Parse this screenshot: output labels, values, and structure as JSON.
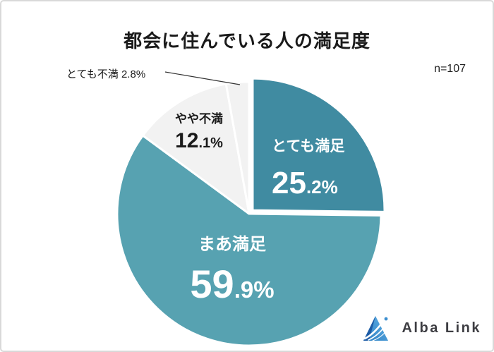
{
  "title": "都会に住んでいる人の満足度",
  "sample_size": "n=107",
  "chart_data": {
    "type": "pie",
    "title": "都会に住んでいる人の満足度",
    "sample_size_label": "n=107",
    "categories": [
      "とても満足",
      "まあ満足",
      "やや不満",
      "とても不満"
    ],
    "values": [
      25.2,
      59.9,
      12.1,
      2.8
    ],
    "unit": "%",
    "colors": [
      "#408ba1",
      "#57a2b1",
      "#f2f2f2",
      "#f2f2f2"
    ],
    "start_angle_deg": 0,
    "direction": "clockwise",
    "exploded_index": 0,
    "legend": "none",
    "labels": [
      {
        "name": "とても満足",
        "int": "25",
        "rest": ".2%"
      },
      {
        "name": "まあ満足",
        "int": "59",
        "rest": ".9%"
      },
      {
        "name": "やや不満",
        "int": "12",
        "rest": ".1%"
      },
      {
        "name": "とても不満",
        "inline": "とても不満 2.8%"
      }
    ]
  },
  "footer": {
    "brand": "Alba Link"
  }
}
